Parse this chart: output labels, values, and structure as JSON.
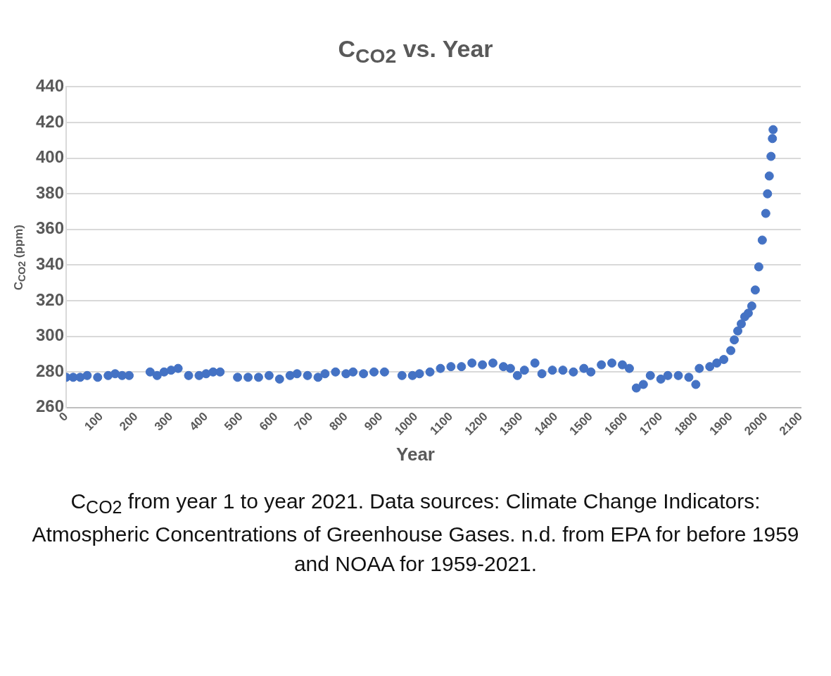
{
  "chart_data": {
    "type": "scatter",
    "title": "C$_{CO2}$ vs. Year",
    "xlabel": "Year",
    "ylabel": "C$_{CO2}$ (ppm)",
    "annotations": [
      "C$_{CO2}$ from year 1 to year 2021. Data sources: Climate Change Indicators: Atmospheric Concentrations of Greenhouse Gases. n.d. from EPA for before 1959 and NOAA for 1959-2021."
    ],
    "x": [
      0,
      20,
      40,
      60,
      90,
      120,
      140,
      160,
      180,
      240,
      260,
      280,
      300,
      320,
      350,
      380,
      400,
      420,
      440,
      490,
      520,
      550,
      580,
      610,
      640,
      660,
      690,
      720,
      740,
      770,
      800,
      820,
      850,
      880,
      910,
      960,
      990,
      1010,
      1040,
      1070,
      1100,
      1130,
      1160,
      1190,
      1220,
      1250,
      1270,
      1290,
      1310,
      1340,
      1360,
      1390,
      1420,
      1450,
      1480,
      1500,
      1530,
      1560,
      1590,
      1610,
      1630,
      1650,
      1670,
      1700,
      1720,
      1750,
      1780,
      1800,
      1810,
      1840,
      1860,
      1880,
      1900,
      1910,
      1920,
      1930,
      1940,
      1950,
      1960,
      1970,
      1980,
      1990,
      2000,
      2005,
      2010,
      2015,
      2019,
      2021
    ],
    "series": [
      {
        "color": "#4472c4",
        "values": [
          277,
          277,
          277,
          278,
          277,
          278,
          279,
          278,
          278,
          280,
          278,
          280,
          281,
          282,
          278,
          278,
          279,
          280,
          280,
          277,
          277,
          277,
          278,
          276,
          278,
          279,
          278,
          277,
          279,
          280,
          279,
          280,
          279,
          280,
          280,
          278,
          278,
          279,
          280,
          282,
          283,
          283,
          285,
          284,
          285,
          283,
          282,
          278,
          281,
          285,
          279,
          281,
          281,
          280,
          282,
          280,
          284,
          285,
          284,
          282,
          271,
          273,
          278,
          276,
          278,
          278,
          277,
          273,
          282,
          283,
          285,
          287,
          292,
          298,
          303,
          307,
          311,
          313,
          317,
          326,
          339,
          354,
          369,
          380,
          390,
          401,
          411,
          416
        ]
      }
    ],
    "xlim": [
      0,
      2100
    ],
    "xticks": [
      0,
      100,
      200,
      300,
      400,
      500,
      600,
      700,
      800,
      900,
      1000,
      1100,
      1200,
      1300,
      1400,
      1500,
      1600,
      1700,
      1800,
      1900,
      2000,
      2100
    ],
    "ylim": [
      260,
      440
    ],
    "yticks": [
      260,
      280,
      300,
      320,
      340,
      360,
      380,
      400,
      420,
      440
    ],
    "grid": "y",
    "marker": "circle",
    "legend": false
  }
}
